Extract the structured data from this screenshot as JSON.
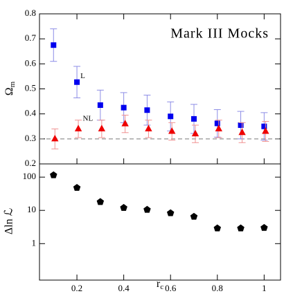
{
  "chart_data": [
    {
      "type": "scatter",
      "title": "Mark III Mocks",
      "ylabel": {
        "main": "Ω",
        "sub": "m"
      },
      "x": [
        0.1,
        0.2,
        0.3,
        0.4,
        0.5,
        0.6,
        0.7,
        0.8,
        0.9,
        1.0
      ],
      "series": [
        {
          "name": "L",
          "color": "#0000ee",
          "error_color": "#8c8ce6",
          "marker": "square",
          "values": [
            0.675,
            0.527,
            0.435,
            0.425,
            0.415,
            0.39,
            0.38,
            0.362,
            0.355,
            0.35
          ],
          "errors": [
            0.065,
            0.063,
            0.06,
            0.06,
            0.06,
            0.058,
            0.058,
            0.055,
            0.055,
            0.055
          ],
          "label_at": [
            0.215,
            0.55
          ]
        },
        {
          "name": "NL",
          "color": "#ee0000",
          "error_color": "#f09090",
          "marker": "triangle",
          "values": [
            0.3,
            0.34,
            0.34,
            0.36,
            0.34,
            0.33,
            0.32,
            0.34,
            0.325,
            0.33
          ],
          "errors": [
            0.04,
            0.035,
            0.035,
            0.035,
            0.035,
            0.035,
            0.035,
            0.035,
            0.04,
            0.04
          ],
          "label_at": [
            0.225,
            0.38
          ]
        }
      ],
      "reference_line": 0.3,
      "ylim": [
        0.2,
        0.8
      ],
      "yticks": [
        0.2,
        0.3,
        0.4,
        0.5,
        0.6,
        0.7,
        0.8
      ]
    },
    {
      "type": "scatter",
      "ylabel": "Δln ℒ",
      "xlabel": {
        "main": "r",
        "sub": "c"
      },
      "x": [
        0.1,
        0.2,
        0.3,
        0.4,
        0.5,
        0.6,
        0.7,
        0.8,
        0.9,
        1.0
      ],
      "series": [
        {
          "color": "#000000",
          "marker": "pentagon",
          "values": [
            115,
            48,
            18,
            12,
            10.5,
            8.3,
            6.5,
            2.9,
            2.9,
            3.0
          ]
        }
      ],
      "log_y": true,
      "ylim": [
        0.08,
        250
      ],
      "yticks": [
        1,
        10,
        100
      ],
      "xlim": [
        0.04,
        1.07
      ],
      "xticks": [
        0.2,
        0.4,
        0.6,
        0.8,
        1
      ]
    }
  ]
}
